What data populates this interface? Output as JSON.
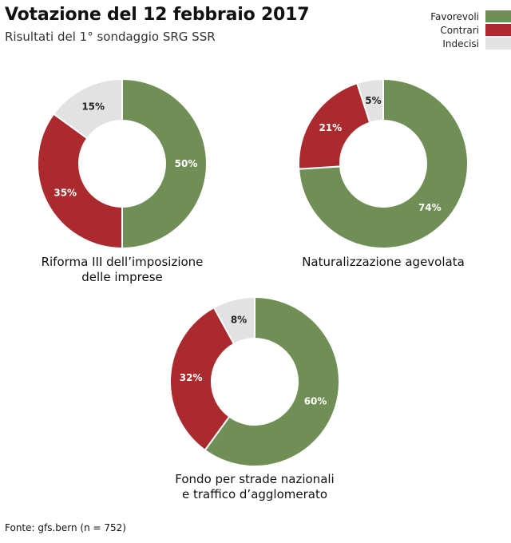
{
  "title": "Votazione del 12 febbraio 2017",
  "subtitle": "Risultati del 1° sondaggio SRG SSR",
  "source": "Fonte: gfs.bern (n = 752)",
  "legend": [
    {
      "label": "Favorevoli",
      "color": "#708f56"
    },
    {
      "label": "Contrari",
      "color": "#ab2a2e"
    },
    {
      "label": "Indecisi",
      "color": "#e2e2e2"
    }
  ],
  "chart_data": [
    {
      "type": "pie",
      "title_lines": [
        "Riforma III dell’imposizione",
        "delle imprese"
      ],
      "slices": [
        {
          "category": "Favorevoli",
          "value": 50,
          "label": "50%"
        },
        {
          "category": "Contrari",
          "value": 35,
          "label": "35%"
        },
        {
          "category": "Indecisi",
          "value": 15,
          "label": "15%"
        }
      ]
    },
    {
      "type": "pie",
      "title_lines": [
        "Naturalizzazione agevolata"
      ],
      "slices": [
        {
          "category": "Favorevoli",
          "value": 74,
          "label": "74%"
        },
        {
          "category": "Contrari",
          "value": 21,
          "label": "21%"
        },
        {
          "category": "Indecisi",
          "value": 5,
          "label": "5%"
        }
      ]
    },
    {
      "type": "pie",
      "title_lines": [
        "Fondo per strade nazionali",
        "e traffico d’agglomerato"
      ],
      "slices": [
        {
          "category": "Favorevoli",
          "value": 60,
          "label": "60%"
        },
        {
          "category": "Contrari",
          "value": 32,
          "label": "32%"
        },
        {
          "category": "Indecisi",
          "value": 8,
          "label": "8%"
        }
      ]
    }
  ]
}
